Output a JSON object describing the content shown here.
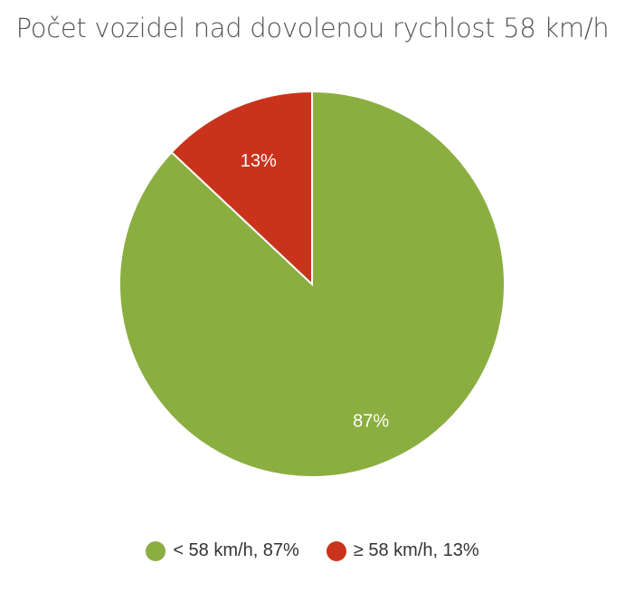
{
  "chart_data": {
    "type": "pie",
    "title": "Počet vozidel nad dovolenou rychlost 58 km/h",
    "slices": [
      {
        "label": "< 58 km/h, 87%",
        "value": 87,
        "data_label": "87%",
        "color": "#8BAE41"
      },
      {
        "label": "≥ 58 km/h, 13%",
        "value": 13,
        "data_label": "13%",
        "color": "#C9331C"
      }
    ],
    "legend_position": "bottom"
  }
}
